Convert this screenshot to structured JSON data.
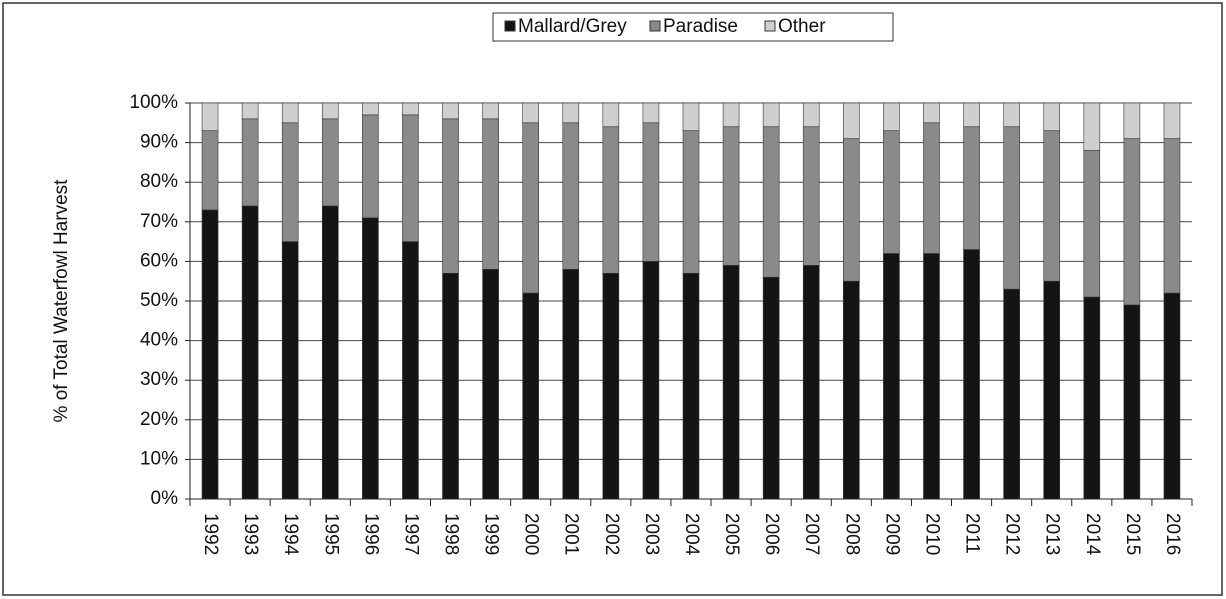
{
  "chart_data": {
    "type": "stacked_bar",
    "y_label": "% of Total Waterfowl Harvest",
    "categories": [
      "1992",
      "1993",
      "1994",
      "1995",
      "1996",
      "1997",
      "1998",
      "1999",
      "2000",
      "2001",
      "2002",
      "2003",
      "2004",
      "2005",
      "2006",
      "2007",
      "2008",
      "2009",
      "2010",
      "2011",
      "2012",
      "2013",
      "2014",
      "2015",
      "2016"
    ],
    "series": [
      {
        "name": "Mallard/Grey",
        "color": "#141414",
        "values": [
          73,
          74,
          65,
          74,
          71,
          65,
          57,
          58,
          52,
          58,
          57,
          60,
          57,
          59,
          56,
          59,
          55,
          62,
          62,
          63,
          53,
          55,
          51,
          49,
          52
        ]
      },
      {
        "name": "Paradise",
        "color": "#8a8a8a",
        "values": [
          20,
          22,
          30,
          22,
          26,
          32,
          39,
          38,
          43,
          37,
          37,
          35,
          36,
          35,
          38,
          35,
          36,
          31,
          33,
          31,
          41,
          38,
          37,
          42,
          39
        ]
      },
      {
        "name": "Other",
        "color": "#cfcfcf",
        "values": [
          7,
          4,
          5,
          4,
          3,
          3,
          4,
          4,
          5,
          5,
          6,
          5,
          7,
          6,
          6,
          6,
          9,
          7,
          5,
          6,
          6,
          7,
          12,
          9,
          9
        ]
      }
    ],
    "ylim": [
      0,
      100
    ],
    "yticks": [
      {
        "value": 0,
        "label": "0%"
      },
      {
        "value": 10,
        "label": "10%"
      },
      {
        "value": 20,
        "label": "20%"
      },
      {
        "value": 30,
        "label": "30%"
      },
      {
        "value": 40,
        "label": "40%"
      },
      {
        "value": 50,
        "label": "50%"
      },
      {
        "value": 60,
        "label": "60%"
      },
      {
        "value": 70,
        "label": "70%"
      },
      {
        "value": 80,
        "label": "80%"
      },
      {
        "value": 90,
        "label": "90%"
      },
      {
        "value": 100,
        "label": "100%"
      }
    ],
    "grid": true,
    "legend": "top"
  }
}
